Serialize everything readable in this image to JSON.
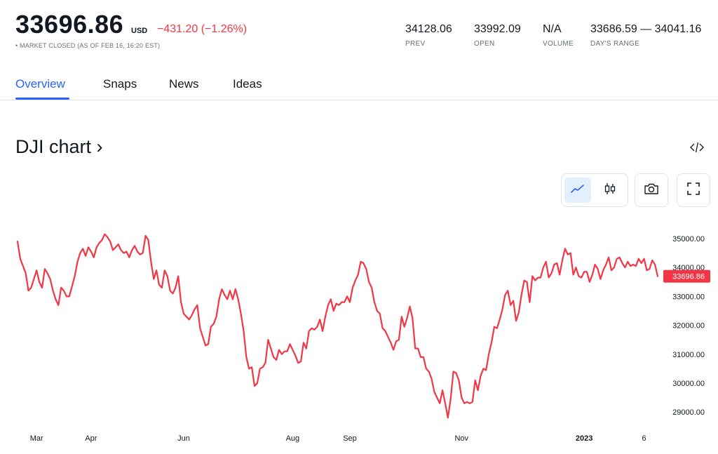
{
  "quote": {
    "price": "33696.86",
    "currency": "USD",
    "change": "−431.20 (−1.26%)",
    "market_status": "• MARKET CLOSED (AS OF FEB 16, 16:20 EST)"
  },
  "stats": [
    {
      "value": "34128.06",
      "label": "PREV"
    },
    {
      "value": "33992.09",
      "label": "OPEN"
    },
    {
      "value": "N/A",
      "label": "VOLUME"
    },
    {
      "value": "33686.59 — 34041.16",
      "label": "DAY'S RANGE"
    }
  ],
  "tabs": [
    "Overview",
    "Snaps",
    "News",
    "Ideas"
  ],
  "active_tab": "Overview",
  "chart_title": "DJI chart ›",
  "colors": {
    "accent": "#2962ff",
    "line": "#f23645",
    "text": "#131722",
    "muted": "#6a6d78"
  },
  "icons": {
    "embed": "code-embed-icon",
    "line_toggle": "line-chart-icon",
    "candle_toggle": "candlestick-icon",
    "snapshot": "camera-icon",
    "fullscreen": "fullscreen-icon"
  },
  "chart_data": {
    "type": "line",
    "title": "",
    "xlabel": "",
    "ylabel": "",
    "ylim": [
      28500,
      35500
    ],
    "y_ticks": [
      "35000.00",
      "34000.00",
      "33000.00",
      "32000.00",
      "31000.00",
      "30000.00",
      "29000.00"
    ],
    "x_ticks": [
      {
        "label": "Mar",
        "i": 7,
        "bold": false
      },
      {
        "label": "Apr",
        "i": 27,
        "bold": false
      },
      {
        "label": "Jun",
        "i": 61,
        "bold": false
      },
      {
        "label": "Aug",
        "i": 101,
        "bold": false
      },
      {
        "label": "Sep",
        "i": 122,
        "bold": false
      },
      {
        "label": "Nov",
        "i": 163,
        "bold": false
      },
      {
        "label": "2023",
        "i": 208,
        "bold": true
      },
      {
        "label": "6",
        "i": 230,
        "bold": false
      }
    ],
    "last_value_label": "33696.86",
    "series": [
      {
        "values": [
          34900,
          34300,
          34050,
          33800,
          33200,
          33300,
          33600,
          33900,
          33500,
          33300,
          33950,
          33800,
          33600,
          33200,
          32900,
          32700,
          33300,
          33200,
          33000,
          33000,
          33350,
          33700,
          34200,
          34500,
          34650,
          34400,
          34700,
          34550,
          34350,
          34700,
          34850,
          34950,
          35150,
          35050,
          34900,
          34600,
          34700,
          34800,
          34600,
          34500,
          34550,
          34350,
          34600,
          34750,
          34550,
          34450,
          34500,
          35100,
          34950,
          34200,
          33600,
          33900,
          33400,
          33300,
          33900,
          33700,
          33200,
          33100,
          33300,
          33700,
          32800,
          32400,
          32300,
          32200,
          32350,
          32550,
          32700,
          31900,
          31600,
          31300,
          31350,
          31950,
          32050,
          32300,
          32900,
          33250,
          33050,
          32900,
          33200,
          32900,
          33250,
          32900,
          32400,
          31800,
          30900,
          30500,
          30550,
          29900,
          30000,
          30500,
          30550,
          30700,
          31500,
          31200,
          30900,
          30800,
          31150,
          31000,
          31100,
          31100,
          31350,
          31150,
          30950,
          30700,
          30750,
          31400,
          31200,
          31800,
          31900,
          31850,
          31950,
          32200,
          31800,
          32300,
          32700,
          32900,
          32500,
          32750,
          32700,
          32800,
          32800,
          33000,
          32800,
          33300,
          33550,
          33750,
          34200,
          34150,
          33950,
          33500,
          33300,
          32800,
          32500,
          32400,
          31900,
          31800,
          31600,
          31400,
          31150,
          31450,
          31500,
          32300,
          31950,
          32250,
          32650,
          32250,
          31200,
          31200,
          30900,
          30900,
          30500,
          30400,
          30150,
          29700,
          29500,
          29300,
          29750,
          29300,
          28800,
          29450,
          30400,
          30350,
          30100,
          29500,
          29300,
          29350,
          29300,
          29350,
          30100,
          29750,
          30250,
          30500,
          30450,
          31000,
          31400,
          31950,
          31900,
          32200,
          32550,
          33050,
          33200,
          32700,
          32850,
          32150,
          32450,
          33050,
          33550,
          33500,
          32800,
          33700,
          33550,
          33650,
          33650,
          34000,
          34200,
          33650,
          33800,
          34100,
          34150,
          33750,
          34250,
          34650,
          34450,
          34500,
          33750,
          34000,
          33700,
          33650,
          33850,
          33850,
          33500,
          33750,
          34100,
          33950,
          33600,
          33900,
          34100,
          34350,
          33900,
          34000,
          34300,
          34350,
          34150,
          34000,
          34200,
          34050,
          34100,
          34050,
          34300,
          34150,
          34300,
          33900,
          33950,
          34250,
          34100,
          33696.86
        ]
      }
    ]
  }
}
